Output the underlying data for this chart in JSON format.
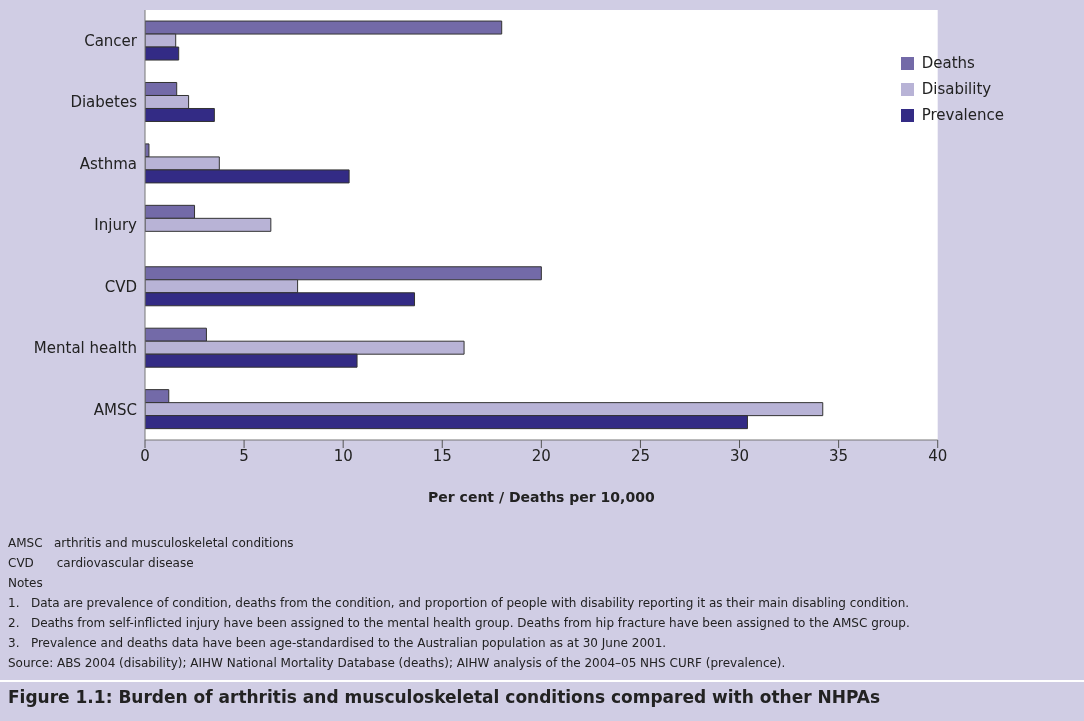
{
  "chart_data": {
    "type": "bar",
    "orientation": "horizontal",
    "title": "Figure 1.1: Burden of arthritis and musculoskeletal conditions compared with other NHPAs",
    "xlabel": "Per cent / Deaths per 10,000",
    "categories": [
      "Cancer",
      "Diabetes",
      "Asthma",
      "Injury",
      "CVD",
      "Mental health",
      "AMSC"
    ],
    "series": [
      {
        "name": "Deaths",
        "color": "#736aa8",
        "values": [
          18.0,
          1.6,
          0.2,
          2.5,
          20.0,
          3.1,
          1.2
        ]
      },
      {
        "name": "Disability",
        "color": "#b8b3d6",
        "values": [
          1.55,
          2.2,
          3.75,
          6.35,
          7.7,
          16.1,
          34.2
        ]
      },
      {
        "name": "Prevalence",
        "color": "#332b85",
        "values": [
          1.7,
          3.5,
          10.3,
          null,
          13.6,
          10.7,
          30.4
        ]
      }
    ],
    "xlim": [
      0,
      40
    ],
    "xticks": [
      0,
      5,
      10,
      15,
      20,
      25,
      30,
      35,
      40
    ],
    "grid": false,
    "legend": "top right",
    "annotations": [
      "AMSC   arthritis and musculoskeletal conditions",
      "CVD      cardiovascular disease",
      "Notes",
      "1.   Data are prevalence of condition, deaths from the condition, and proportion of people with disability reporting it as their main disabling condition.",
      "2.   Deaths from self-inflicted injury have been assigned to the mental health group. Deaths from hip fracture have been assigned to the AMSC group.",
      "3.   Prevalence and deaths data have been age-standardised to the Australian population as at 30 June 2001.",
      "Source: ABS 2004 (disability); AIHW National Mortality Database (deaths); AIHW analysis of the 2004–05 NHS CURF (prevalence)."
    ]
  }
}
